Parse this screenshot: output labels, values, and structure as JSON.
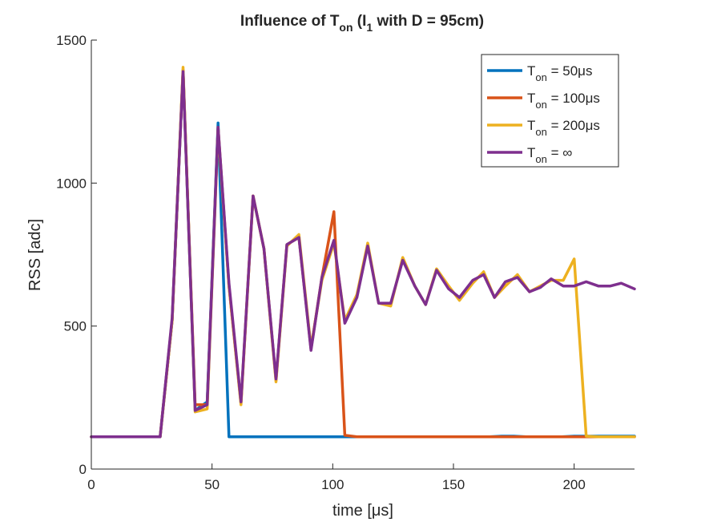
{
  "chart_data": {
    "type": "line",
    "title": {
      "main": "Influence of T",
      "main_sub": "on",
      "mid": " (I",
      "mid_sub": "1",
      "tail": " with D = 95cm)"
    },
    "xlabel": "time [μs]",
    "ylabel": "RSS [adc]",
    "xlim": [
      0,
      225
    ],
    "ylim": [
      0,
      1500
    ],
    "xticks": [
      0,
      50,
      100,
      150,
      200
    ],
    "yticks": [
      0,
      500,
      1000,
      1500
    ],
    "xtick_labels": [
      "0",
      "50",
      "100",
      "150",
      "200"
    ],
    "ytick_labels": [
      "0",
      "500",
      "1000",
      "1500"
    ],
    "grid": false,
    "legend_position": "top-right",
    "series": [
      {
        "name": "T",
        "name_sub": "on",
        "name_suffix": " = 50μs",
        "color": "#0072BD",
        "x": [
          0,
          28.5,
          33.5,
          38,
          43,
          48,
          52.5,
          57,
          62,
          100,
          105,
          110,
          165,
          170,
          175,
          180,
          195,
          200,
          225
        ],
        "y": [
          113,
          113,
          520,
          1395,
          205,
          235,
          1210,
          113,
          113,
          113,
          113,
          113,
          113,
          115,
          115,
          113,
          113,
          115,
          115
        ]
      },
      {
        "name": "T",
        "name_sub": "on",
        "name_suffix": " = 100μs",
        "color": "#D95319",
        "x": [
          0,
          28.5,
          33.5,
          38,
          43,
          48,
          52.5,
          57,
          62,
          67,
          71.5,
          76.5,
          81,
          86,
          91,
          95.5,
          100.5,
          105,
          110,
          225
        ],
        "y": [
          113,
          113,
          520,
          1395,
          225,
          225,
          1195,
          640,
          230,
          955,
          770,
          310,
          785,
          810,
          420,
          670,
          900,
          118,
          113,
          113
        ]
      },
      {
        "name": "T",
        "name_sub": "on",
        "name_suffix": " = 200μs",
        "color": "#EDB120",
        "x": [
          0,
          28.5,
          33.5,
          38,
          43,
          48,
          52.5,
          57,
          62,
          67,
          71.5,
          76.5,
          81,
          86,
          91,
          95.5,
          100.5,
          105,
          110,
          114.5,
          119,
          124,
          129,
          134,
          138.5,
          143,
          148,
          152.5,
          158,
          162.5,
          167,
          171.5,
          176.5,
          181.5,
          186,
          190.5,
          195.5,
          200,
          205,
          210,
          225
        ],
        "y": [
          113,
          113,
          520,
          1405,
          200,
          210,
          1185,
          640,
          225,
          955,
          770,
          305,
          780,
          820,
          425,
          660,
          790,
          520,
          610,
          790,
          580,
          570,
          740,
          640,
          575,
          700,
          640,
          590,
          650,
          690,
          600,
          640,
          680,
          620,
          640,
          660,
          660,
          735,
          115,
          113,
          113
        ]
      },
      {
        "name": "T",
        "name_sub": "on",
        "name_suffix": " = ∞",
        "color": "#7E2F8E",
        "x": [
          0,
          28.5,
          33.5,
          38,
          43,
          48,
          52.5,
          57,
          62,
          67,
          71.5,
          76.5,
          81,
          86,
          91,
          95.5,
          100.5,
          105,
          110,
          114.5,
          119,
          124,
          129,
          134,
          138.5,
          143,
          148,
          152.5,
          158,
          162.5,
          167,
          171.5,
          176.5,
          181.5,
          186,
          190.5,
          195.5,
          200,
          205,
          210,
          215,
          219.5,
          225
        ],
        "y": [
          113,
          113,
          530,
          1390,
          205,
          225,
          1195,
          650,
          235,
          955,
          770,
          315,
          785,
          810,
          415,
          670,
          800,
          510,
          600,
          780,
          580,
          580,
          730,
          640,
          575,
          695,
          630,
          600,
          660,
          680,
          600,
          655,
          670,
          620,
          635,
          665,
          640,
          640,
          655,
          640,
          640,
          650,
          630
        ]
      }
    ]
  }
}
